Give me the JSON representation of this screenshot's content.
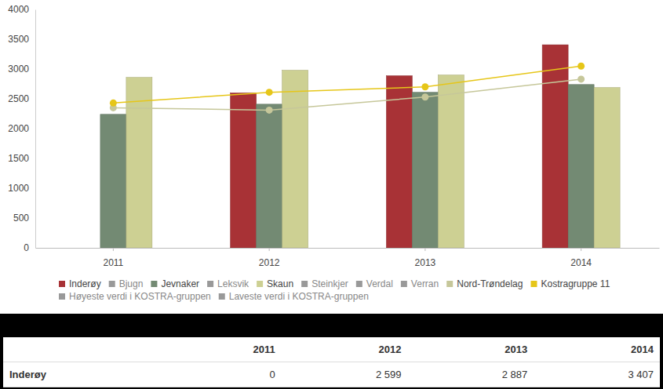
{
  "chart_data": {
    "type": "bar",
    "categories": [
      "2011",
      "2012",
      "2013",
      "2014"
    ],
    "series": [
      {
        "name": "Inderøy",
        "type": "bar",
        "color": "#a83236",
        "values": [
          0,
          2599,
          2887,
          3407
        ]
      },
      {
        "name": "Bjugn",
        "type": "line",
        "color": "#999999",
        "values": [
          null,
          null,
          null,
          null
        ]
      },
      {
        "name": "Jevnaker",
        "type": "bar",
        "color": "#738a73",
        "values": [
          2240,
          2410,
          2610,
          2740
        ]
      },
      {
        "name": "Leksvik",
        "type": "line",
        "color": "#999999",
        "values": [
          null,
          null,
          null,
          null
        ]
      },
      {
        "name": "Skaun",
        "type": "bar",
        "color": "#cdd093",
        "values": [
          2860,
          2980,
          2900,
          2690
        ]
      },
      {
        "name": "Steinkjer",
        "type": "line",
        "color": "#999999",
        "values": [
          null,
          null,
          null,
          null
        ]
      },
      {
        "name": "Verdal",
        "type": "line",
        "color": "#999999",
        "values": [
          null,
          null,
          null,
          null
        ]
      },
      {
        "name": "Verran",
        "type": "line",
        "color": "#999999",
        "values": [
          null,
          null,
          null,
          null
        ]
      },
      {
        "name": "Nord-Trøndelag",
        "type": "line",
        "color": "#c6c79a",
        "marker": "circle",
        "values": [
          2350,
          2310,
          2530,
          2830
        ]
      },
      {
        "name": "Kostragruppe 11",
        "type": "line",
        "color": "#e6c619",
        "marker": "circle",
        "values": [
          2430,
          2610,
          2700,
          3050
        ]
      },
      {
        "name": "Høyeste verdi i KOSTRA-gruppen",
        "type": "line",
        "color": "#999999",
        "values": [
          null,
          null,
          null,
          null
        ]
      },
      {
        "name": "Laveste verdi i KOSTRA-gruppen",
        "type": "line",
        "color": "#999999",
        "values": [
          null,
          null,
          null,
          null
        ]
      }
    ],
    "ylim": [
      0,
      4000
    ],
    "yticks": [
      0,
      500,
      1000,
      1500,
      2000,
      2500,
      3000,
      3500,
      4000
    ],
    "grid": false
  },
  "table": {
    "header": [
      "2011",
      "2012",
      "2013",
      "2014"
    ],
    "rows": [
      {
        "label": "Inderøy",
        "values": [
          "0",
          "2 599",
          "2 887",
          "3 407"
        ]
      }
    ]
  }
}
